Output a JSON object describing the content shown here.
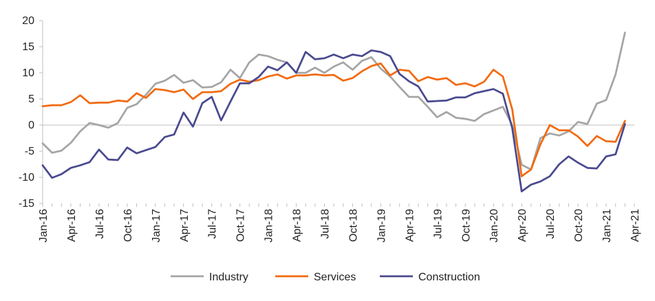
{
  "chart_data": {
    "type": "line",
    "title": "",
    "xlabel": "",
    "ylabel": "",
    "ylim": [
      -15,
      20
    ],
    "yticks": [
      -15,
      -10,
      -5,
      0,
      5,
      10,
      15,
      20
    ],
    "grid": "none",
    "legend_position": "bottom",
    "x_tick_labels": [
      "Jan-16",
      "Apr-16",
      "Jul-16",
      "Oct-16",
      "Jan-17",
      "Apr-17",
      "Jul-17",
      "Oct-17",
      "Jan-18",
      "Apr-18",
      "Jul-18",
      "Oct-18",
      "Jan-19",
      "Apr-19",
      "Jul-19",
      "Oct-19",
      "Jan-20",
      "Apr-20",
      "Jul-20",
      "Oct-20",
      "Jan-21",
      "Apr-21"
    ],
    "x": [
      "2016-01",
      "2016-02",
      "2016-03",
      "2016-04",
      "2016-05",
      "2016-06",
      "2016-07",
      "2016-08",
      "2016-09",
      "2016-10",
      "2016-11",
      "2016-12",
      "2017-01",
      "2017-02",
      "2017-03",
      "2017-04",
      "2017-05",
      "2017-06",
      "2017-07",
      "2017-08",
      "2017-09",
      "2017-10",
      "2017-11",
      "2017-12",
      "2018-01",
      "2018-02",
      "2018-03",
      "2018-04",
      "2018-05",
      "2018-06",
      "2018-07",
      "2018-08",
      "2018-09",
      "2018-10",
      "2018-11",
      "2018-12",
      "2019-01",
      "2019-02",
      "2019-03",
      "2019-04",
      "2019-05",
      "2019-06",
      "2019-07",
      "2019-08",
      "2019-09",
      "2019-10",
      "2019-11",
      "2019-12",
      "2020-01",
      "2020-02",
      "2020-03",
      "2020-04",
      "2020-05",
      "2020-06",
      "2020-07",
      "2020-08",
      "2020-09",
      "2020-10",
      "2020-11",
      "2020-12",
      "2021-01",
      "2021-02",
      "2021-03"
    ],
    "series": [
      {
        "name": "Industry",
        "color": "#a5a5a5",
        "values": [
          -3.5,
          -5.3,
          -4.9,
          -3.4,
          -1.2,
          0.4,
          0.0,
          -0.5,
          0.4,
          3.3,
          4.0,
          5.8,
          7.9,
          8.5,
          9.6,
          8.1,
          8.6,
          7.2,
          7.3,
          8.2,
          10.6,
          9.0,
          12.0,
          13.5,
          13.2,
          12.5,
          12.0,
          10.0,
          10.0,
          11.0,
          10.0,
          11.2,
          12.0,
          10.6,
          12.3,
          13.0,
          10.8,
          9.3,
          7.3,
          5.4,
          5.4,
          3.5,
          1.5,
          2.5,
          1.4,
          1.2,
          0.8,
          2.1,
          2.8,
          3.5,
          0.0,
          -7.6,
          -8.5,
          -2.5,
          -1.6,
          -2.0,
          -1.2,
          0.6,
          0.2,
          4.1,
          4.8,
          9.7,
          17.7
        ]
      },
      {
        "name": "Services",
        "color": "#f26a0f",
        "values": [
          3.6,
          3.8,
          3.8,
          4.4,
          5.7,
          4.2,
          4.3,
          4.3,
          4.7,
          4.5,
          6.1,
          5.2,
          6.9,
          6.7,
          6.3,
          6.8,
          5.0,
          6.3,
          6.3,
          6.5,
          7.9,
          8.7,
          8.3,
          8.6,
          9.3,
          9.7,
          8.9,
          9.5,
          9.5,
          9.7,
          9.5,
          9.6,
          8.5,
          9.0,
          10.3,
          11.3,
          11.8,
          9.5,
          10.6,
          10.4,
          8.4,
          9.2,
          8.7,
          9.0,
          7.7,
          8.0,
          7.4,
          8.3,
          10.6,
          9.3,
          3.0,
          -9.8,
          -8.5,
          -3.7,
          0.0,
          -1.0,
          -1.0,
          -2.2,
          -4.0,
          -2.1,
          -3.1,
          -3.2,
          0.8
        ]
      },
      {
        "name": "Construction",
        "color": "#4a4a8f",
        "values": [
          -7.7,
          -10.1,
          -9.4,
          -8.2,
          -7.7,
          -7.1,
          -4.7,
          -6.6,
          -6.7,
          -4.3,
          -5.4,
          -4.8,
          -4.2,
          -2.3,
          -1.8,
          2.4,
          -0.3,
          4.2,
          5.4,
          0.9,
          4.5,
          8.0,
          8.0,
          9.2,
          11.2,
          10.5,
          12.0,
          10.0,
          14.0,
          12.6,
          12.8,
          13.5,
          12.8,
          13.5,
          13.2,
          14.3,
          14.0,
          13.2,
          9.8,
          8.4,
          7.4,
          4.5,
          4.6,
          4.7,
          5.3,
          5.3,
          6.1,
          6.5,
          6.9,
          6.0,
          -0.6,
          -12.7,
          -11.4,
          -10.8,
          -9.8,
          -7.5,
          -6.0,
          -7.2,
          -8.2,
          -8.3,
          -6.0,
          -5.6,
          0.2
        ]
      }
    ]
  }
}
